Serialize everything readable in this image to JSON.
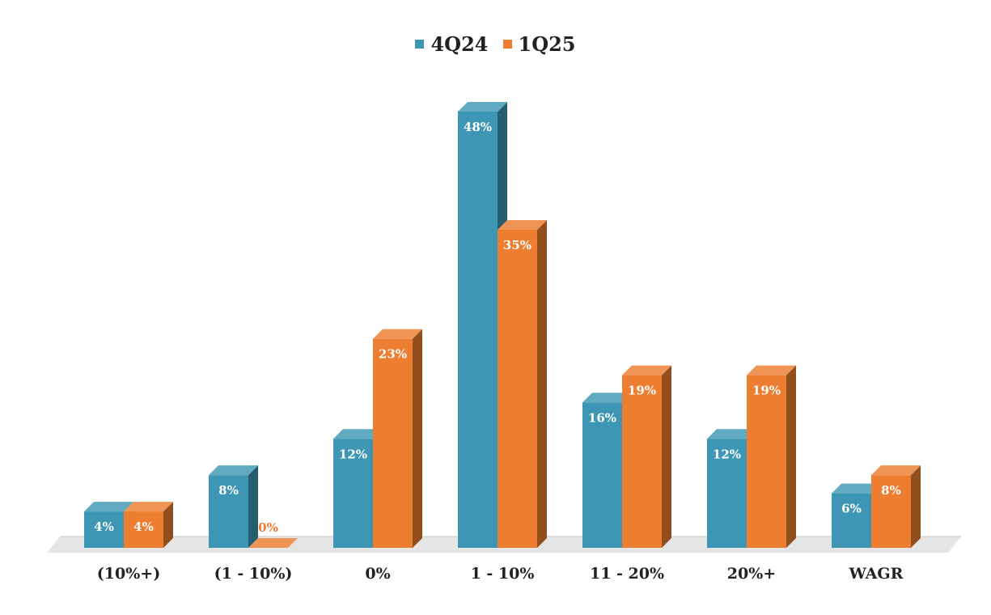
{
  "colors": {
    "series_4q24": "#3d97b4",
    "series_1q25": "#ed7d31",
    "floor": "#e5e5e5",
    "label_text": "#ffffff",
    "axis_text": "#222222"
  },
  "chart_data": {
    "type": "bar",
    "categories": [
      "(10%+)",
      "(1 - 10%)",
      "0%",
      "1 - 10%",
      "11 - 20%",
      "20%+",
      "WAGR"
    ],
    "series": [
      {
        "name": "4Q24",
        "values": [
          4,
          8,
          12,
          48,
          16,
          12,
          6
        ],
        "labels": [
          "4%",
          "8%",
          "12%",
          "48%",
          "16%",
          "12%",
          "6%"
        ]
      },
      {
        "name": "1Q25",
        "values": [
          4,
          0,
          23,
          35,
          19,
          19,
          8
        ],
        "labels": [
          "4%",
          "0%",
          "23%",
          "35%",
          "19%",
          "19%",
          "8%"
        ]
      }
    ],
    "ylim": [
      0,
      50
    ],
    "legend_position": "top-center",
    "grid": false,
    "style": "3d-bars"
  }
}
